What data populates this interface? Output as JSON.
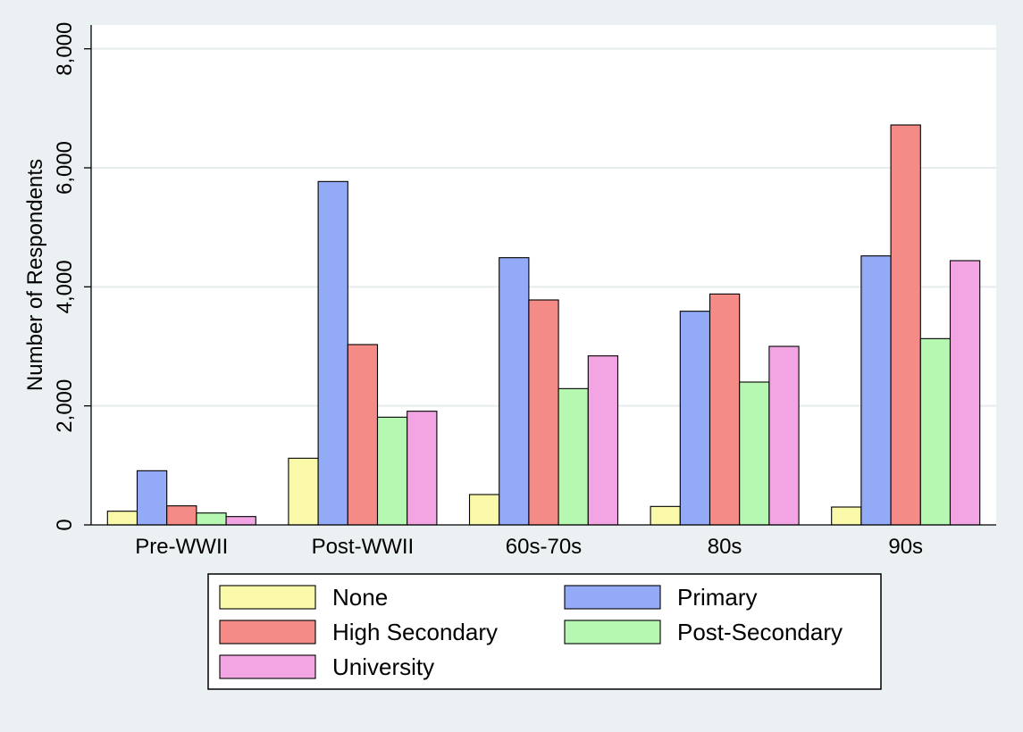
{
  "chart_data": {
    "type": "bar",
    "title": "",
    "xlabel": "",
    "ylabel": "Number of Respondents",
    "ylim": [
      0,
      8400
    ],
    "yticks": [
      0,
      2000,
      4000,
      6000,
      8000
    ],
    "ytick_labels": [
      "0",
      "2,000",
      "4,000",
      "6,000",
      "8,000"
    ],
    "grid": true,
    "legend_position": "bottom",
    "categories": [
      "Pre-WWII",
      "Post-WWII",
      "60s-70s",
      "80s",
      "90s"
    ],
    "series": [
      {
        "name": "None",
        "color": "#faf8a9",
        "values": [
          230,
          1120,
          510,
          310,
          300
        ]
      },
      {
        "name": "Primary",
        "color": "#93aaf7",
        "values": [
          910,
          5770,
          4490,
          3590,
          4520
        ]
      },
      {
        "name": "High Secondary",
        "color": "#f48b86",
        "values": [
          320,
          3030,
          3780,
          3880,
          6720
        ]
      },
      {
        "name": "Post-Secondary",
        "color": "#b6f7b2",
        "values": [
          200,
          1810,
          2290,
          2400,
          3130
        ]
      },
      {
        "name": "University",
        "color": "#f3a5e3",
        "values": [
          140,
          1910,
          2840,
          3000,
          4440
        ]
      }
    ]
  }
}
